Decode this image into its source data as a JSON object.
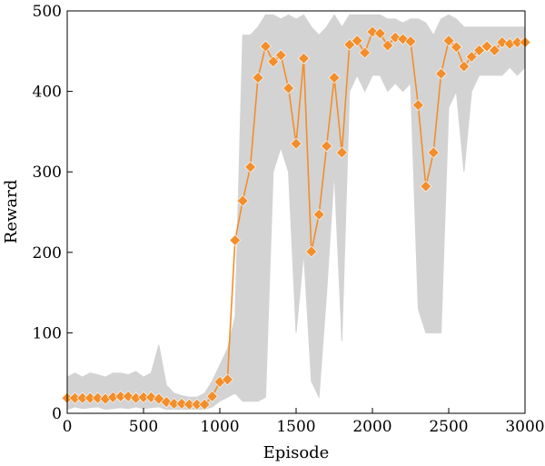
{
  "chart_data": {
    "type": "line",
    "xlabel": "Episode",
    "ylabel": "Reward",
    "xlim": [
      0,
      3000
    ],
    "ylim": [
      0,
      500
    ],
    "x_ticks": [
      0,
      500,
      1000,
      1500,
      2000,
      2500,
      3000
    ],
    "y_ticks": [
      0,
      100,
      200,
      300,
      400,
      500
    ],
    "x_tick_labels": [
      "0",
      "500",
      "1000",
      "1500",
      "2000",
      "2500",
      "3000"
    ],
    "y_tick_labels": [
      "0",
      "100",
      "200",
      "300",
      "400",
      "500"
    ],
    "grid": false,
    "series": [
      {
        "role": "raw episode reward (light gray)",
        "color": "#d3d3d3",
        "x": [
          0,
          50,
          100,
          150,
          200,
          250,
          300,
          350,
          400,
          450,
          500,
          550,
          600,
          650,
          700,
          750,
          800,
          850,
          900,
          950,
          1000,
          1050,
          1100,
          1150,
          1200,
          1250,
          1300,
          1350,
          1400,
          1450,
          1500,
          1550,
          1600,
          1650,
          1700,
          1750,
          1800,
          1850,
          1900,
          1950,
          2000,
          2050,
          2100,
          2150,
          2200,
          2250,
          2300,
          2350,
          2400,
          2450,
          2500,
          2550,
          2600,
          2650,
          2700,
          2750,
          2800,
          2850,
          2900,
          2950,
          3000
        ],
        "low": [
          5,
          8,
          6,
          7,
          8,
          5,
          6,
          7,
          6,
          8,
          6,
          7,
          8,
          5,
          5,
          5,
          5,
          5,
          5,
          8,
          15,
          20,
          25,
          15,
          15,
          15,
          20,
          300,
          330,
          300,
          100,
          200,
          40,
          20,
          150,
          300,
          90,
          400,
          420,
          400,
          420,
          420,
          400,
          410,
          400,
          410,
          130,
          100,
          100,
          100,
          380,
          400,
          300,
          400,
          420,
          420,
          420,
          420,
          430,
          420,
          430
        ],
        "high": [
          45,
          50,
          45,
          50,
          48,
          45,
          50,
          50,
          48,
          52,
          45,
          50,
          85,
          35,
          25,
          22,
          20,
          20,
          25,
          40,
          60,
          80,
          120,
          470,
          470,
          480,
          495,
          495,
          490,
          495,
          490,
          495,
          480,
          470,
          480,
          495,
          480,
          495,
          495,
          495,
          495,
          495,
          490,
          490,
          485,
          490,
          490,
          485,
          470,
          490,
          495,
          490,
          480,
          480,
          480,
          480,
          480,
          480,
          480,
          480,
          480
        ]
      },
      {
        "role": "smoothed reward (orange, diamond markers)",
        "color": "#f28e2b",
        "x": [
          0,
          50,
          100,
          150,
          200,
          250,
          300,
          350,
          400,
          450,
          500,
          550,
          600,
          650,
          700,
          750,
          800,
          850,
          900,
          950,
          1000,
          1050,
          1100,
          1150,
          1200,
          1250,
          1300,
          1350,
          1400,
          1450,
          1500,
          1550,
          1600,
          1650,
          1700,
          1750,
          1800,
          1850,
          1900,
          1950,
          2000,
          2050,
          2100,
          2150,
          2200,
          2250,
          2300,
          2350,
          2400,
          2450,
          2500,
          2550,
          2600,
          2650,
          2700,
          2750,
          2800,
          2850,
          2900,
          2950,
          3000
        ],
        "values": [
          19,
          19,
          19,
          19,
          19,
          18,
          20,
          21,
          21,
          19,
          20,
          20,
          18,
          14,
          12,
          12,
          11,
          11,
          11,
          21,
          39,
          42,
          215,
          264,
          306,
          417,
          456,
          437,
          445,
          404,
          335,
          441,
          201,
          247,
          332,
          417,
          324,
          458,
          463,
          448,
          474,
          472,
          457,
          467,
          465,
          462,
          383,
          282,
          324,
          422,
          463,
          455,
          431,
          443,
          451,
          456,
          451,
          461,
          459,
          461,
          461
        ]
      }
    ]
  }
}
